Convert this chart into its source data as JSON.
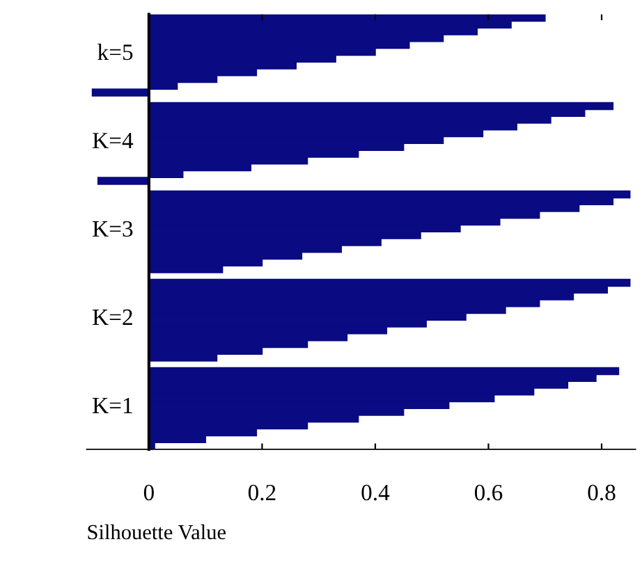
{
  "chart_data": {
    "type": "bar",
    "orientation": "horizontal",
    "xlabel": "Silhouette Value",
    "categories": [
      null,
      null,
      null,
      null,
      null,
      "k=5",
      null,
      null,
      null,
      null,
      null,
      null,
      null,
      null,
      null,
      null,
      null,
      null,
      "K=4",
      null,
      null,
      null,
      null,
      null,
      null,
      null,
      null,
      null,
      null,
      null,
      null,
      "K=3",
      null,
      null,
      null,
      null,
      null,
      null,
      null,
      null,
      null,
      null,
      null,
      null,
      "K=2",
      null,
      null,
      null,
      null,
      null,
      null,
      null,
      null,
      null,
      null,
      null,
      null,
      "K=1",
      null,
      null,
      null,
      null,
      null,
      null
    ],
    "values": [
      0.7,
      0.64,
      0.58,
      0.52,
      0.46,
      0.4,
      0.33,
      0.26,
      0.19,
      0.12,
      0.05,
      -0.1,
      null,
      0.82,
      0.77,
      0.71,
      0.65,
      0.59,
      0.52,
      0.45,
      0.37,
      0.28,
      0.18,
      0.06,
      -0.09,
      null,
      0.85,
      0.82,
      0.76,
      0.69,
      0.62,
      0.55,
      0.48,
      0.41,
      0.34,
      0.27,
      0.2,
      0.13,
      null,
      0.85,
      0.81,
      0.75,
      0.69,
      0.63,
      0.56,
      0.49,
      0.42,
      0.35,
      0.28,
      0.2,
      0.12,
      null,
      0.83,
      0.79,
      0.74,
      0.68,
      0.61,
      0.53,
      0.45,
      0.37,
      0.28,
      0.19,
      0.1,
      0.01
    ],
    "color": "#0a0a82",
    "xlim": [
      -0.11,
      0.86
    ],
    "xticks": [
      0,
      0.2,
      0.4,
      0.6,
      0.8
    ],
    "grid": false,
    "legend": false
  }
}
